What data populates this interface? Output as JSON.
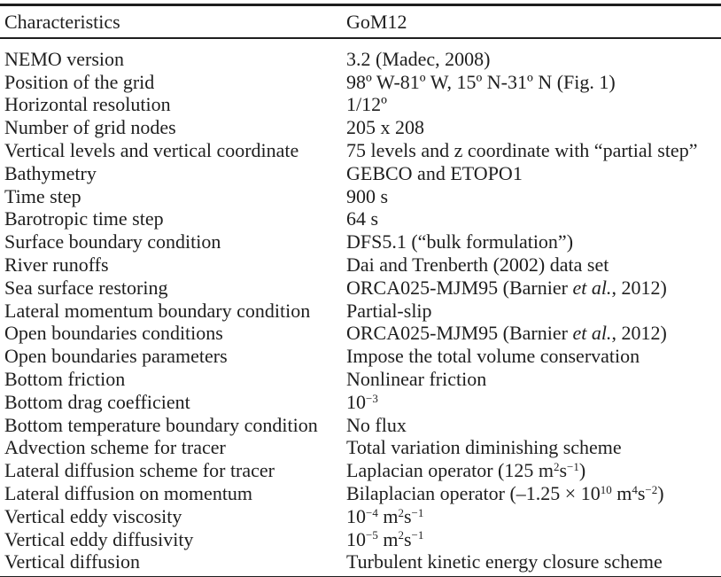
{
  "colors": {
    "text": "#1e1e1e",
    "background": "#ffffff",
    "rule": "#1e1e1e"
  },
  "table": {
    "headers": [
      "Characteristics",
      "GoM12"
    ],
    "rows": [
      {
        "label": "NEMO version",
        "value": [
          {
            "t": "3.2 (Madec, 2008)"
          }
        ]
      },
      {
        "label": "Position of the grid",
        "value": [
          {
            "t": "98º W-81º W, 15º N-31º N (Fig. 1)"
          }
        ]
      },
      {
        "label": "Horizontal resolution",
        "value": [
          {
            "t": "1/12º"
          }
        ]
      },
      {
        "label": "Number of grid nodes",
        "value": [
          {
            "t": "205 x 208"
          }
        ]
      },
      {
        "label": "Vertical levels and vertical coordinate",
        "value": [
          {
            "t": "75 levels and z coordinate with “partial step”"
          }
        ]
      },
      {
        "label": "Bathymetry",
        "value": [
          {
            "t": "GEBCO and ETOPO1"
          }
        ]
      },
      {
        "label": "Time step",
        "value": [
          {
            "t": "900 s"
          }
        ]
      },
      {
        "label": "Barotropic time step",
        "value": [
          {
            "t": "64 s"
          }
        ]
      },
      {
        "label": "Surface boundary condition",
        "value": [
          {
            "t": "DFS5.1 (“bulk formulation”)"
          }
        ]
      },
      {
        "label": "River runoffs",
        "value": [
          {
            "t": "Dai and Trenberth (2002) data set"
          }
        ]
      },
      {
        "label": "Sea surface restoring",
        "value": [
          {
            "t": "ORCA025-MJM95 (Barnier "
          },
          {
            "t": "et al.",
            "i": true
          },
          {
            "t": ", 2012)"
          }
        ]
      },
      {
        "label": "Lateral momentum boundary condition",
        "value": [
          {
            "t": "Partial-slip"
          }
        ]
      },
      {
        "label": "Open boundaries conditions",
        "value": [
          {
            "t": "ORCA025-MJM95 (Barnier "
          },
          {
            "t": "et al.",
            "i": true
          },
          {
            "t": ", 2012)"
          }
        ]
      },
      {
        "label": "Open boundaries parameters",
        "value": [
          {
            "t": "Impose the total volume conservation"
          }
        ]
      },
      {
        "label": "Bottom friction",
        "value": [
          {
            "t": "Nonlinear friction"
          }
        ]
      },
      {
        "label": "Bottom drag coefficient",
        "value": [
          {
            "t": "10"
          },
          {
            "t": "−3",
            "sup": true
          }
        ]
      },
      {
        "label": "Bottom temperature boundary condition",
        "value": [
          {
            "t": "No flux"
          }
        ]
      },
      {
        "label": "Advection scheme for tracer",
        "value": [
          {
            "t": "Total variation diminishing scheme"
          }
        ]
      },
      {
        "label": "Lateral diffusion scheme for tracer",
        "value": [
          {
            "t": "Laplacian operator (125 m"
          },
          {
            "t": "2",
            "sup": true
          },
          {
            "t": "s"
          },
          {
            "t": "−1",
            "sup": true
          },
          {
            "t": ")"
          }
        ]
      },
      {
        "label": "Lateral diffusion on momentum",
        "value": [
          {
            "t": "Bilaplacian operator (–1.25 × 10"
          },
          {
            "t": "10",
            "sup": true
          },
          {
            "t": " m"
          },
          {
            "t": "4",
            "sup": true
          },
          {
            "t": "s"
          },
          {
            "t": "−2",
            "sup": true
          },
          {
            "t": ")"
          }
        ]
      },
      {
        "label": "Vertical eddy viscosity",
        "value": [
          {
            "t": "10"
          },
          {
            "t": "−4",
            "sup": true
          },
          {
            "t": " m"
          },
          {
            "t": "2",
            "sup": true
          },
          {
            "t": "s"
          },
          {
            "t": "−1",
            "sup": true
          }
        ]
      },
      {
        "label": "Vertical eddy diffusivity",
        "value": [
          {
            "t": "10"
          },
          {
            "t": "−5",
            "sup": true
          },
          {
            "t": " m"
          },
          {
            "t": "2",
            "sup": true
          },
          {
            "t": "s"
          },
          {
            "t": "−1",
            "sup": true
          }
        ]
      },
      {
        "label": "Vertical diffusion",
        "value": [
          {
            "t": "Turbulent kinetic energy closure scheme"
          }
        ]
      }
    ]
  }
}
